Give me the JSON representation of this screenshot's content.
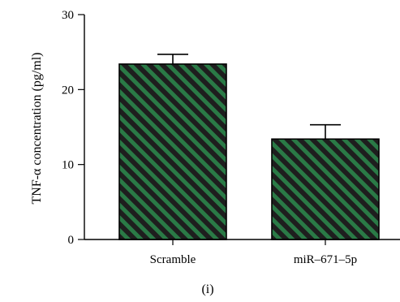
{
  "chart_data": {
    "type": "bar",
    "title": "",
    "xlabel": "",
    "ylabel": "TNF-α concentration (pg/ml)",
    "categories": [
      "Scramble",
      "miR-671-5p"
    ],
    "category_labels": [
      "Scramble",
      "miR–671–5p"
    ],
    "values": [
      23.4,
      13.4
    ],
    "error_upper": [
      24.7,
      15.3
    ],
    "ylim": [
      0,
      30
    ],
    "yticks": [
      0,
      10,
      20,
      30
    ],
    "grid": false,
    "legend": "none",
    "bar_fill": "hatched",
    "colors": {
      "hatch_dark": "#1e1e1e",
      "hatch_green": "#2a7a46"
    }
  },
  "panel_label": "(i)"
}
